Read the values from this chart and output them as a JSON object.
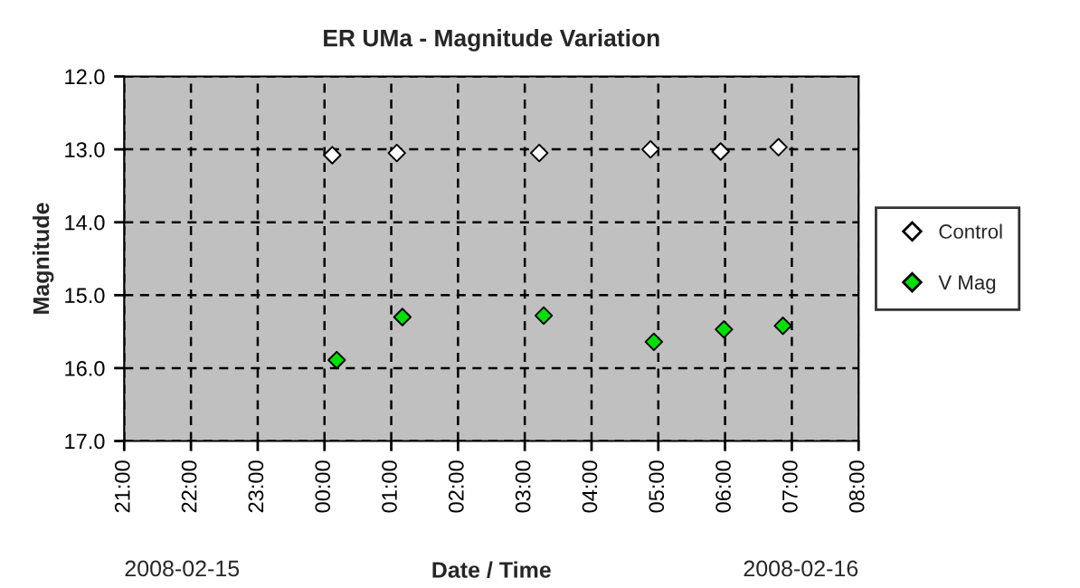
{
  "chart_data": {
    "type": "scatter",
    "title": "ER UMa - Magnitude Variation",
    "xlabel": "Date / Time",
    "ylabel": "Magnitude",
    "annotations": [
      "2008-02-15",
      "2008-02-16"
    ],
    "xlim": [
      "2008-02-15T21:00",
      "2008-02-16T08:00"
    ],
    "xticks": [
      {
        "value": "2008-02-15T21:00",
        "label": "21:00"
      },
      {
        "value": "2008-02-15T22:00",
        "label": "22:00"
      },
      {
        "value": "2008-02-15T23:00",
        "label": "23:00"
      },
      {
        "value": "2008-02-16T00:00",
        "label": "00:00"
      },
      {
        "value": "2008-02-16T01:00",
        "label": "01:00"
      },
      {
        "value": "2008-02-16T02:00",
        "label": "02:00"
      },
      {
        "value": "2008-02-16T03:00",
        "label": "03:00"
      },
      {
        "value": "2008-02-16T04:00",
        "label": "04:00"
      },
      {
        "value": "2008-02-16T05:00",
        "label": "05:00"
      },
      {
        "value": "2008-02-16T06:00",
        "label": "06:00"
      },
      {
        "value": "2008-02-16T07:00",
        "label": "07:00"
      },
      {
        "value": "2008-02-16T08:00",
        "label": "08:00"
      }
    ],
    "ylim": [
      17,
      12
    ],
    "yticks": [
      {
        "value": 12,
        "label": "12.0"
      },
      {
        "value": 13,
        "label": "13.0"
      },
      {
        "value": 14,
        "label": "14.0"
      },
      {
        "value": 15,
        "label": "15.0"
      },
      {
        "value": 16,
        "label": "16.0"
      },
      {
        "value": 17,
        "label": "17.0"
      }
    ],
    "grid": true,
    "legend": "right",
    "marker": "diamond",
    "series": [
      {
        "name": "Control",
        "color": "#ffffff",
        "x": [
          "2008-02-16T00:07",
          "2008-02-16T01:05",
          "2008-02-16T03:13",
          "2008-02-16T04:53",
          "2008-02-16T05:56",
          "2008-02-16T06:48"
        ],
        "values": [
          13.08,
          13.05,
          13.05,
          13.0,
          13.03,
          12.97
        ]
      },
      {
        "name": "V Mag",
        "color": "#00e000",
        "x": [
          "2008-02-16T00:11",
          "2008-02-16T01:10",
          "2008-02-16T03:17",
          "2008-02-16T04:56",
          "2008-02-16T05:59",
          "2008-02-16T06:52"
        ],
        "values": [
          15.89,
          15.3,
          15.28,
          15.64,
          15.47,
          15.42
        ]
      }
    ]
  }
}
